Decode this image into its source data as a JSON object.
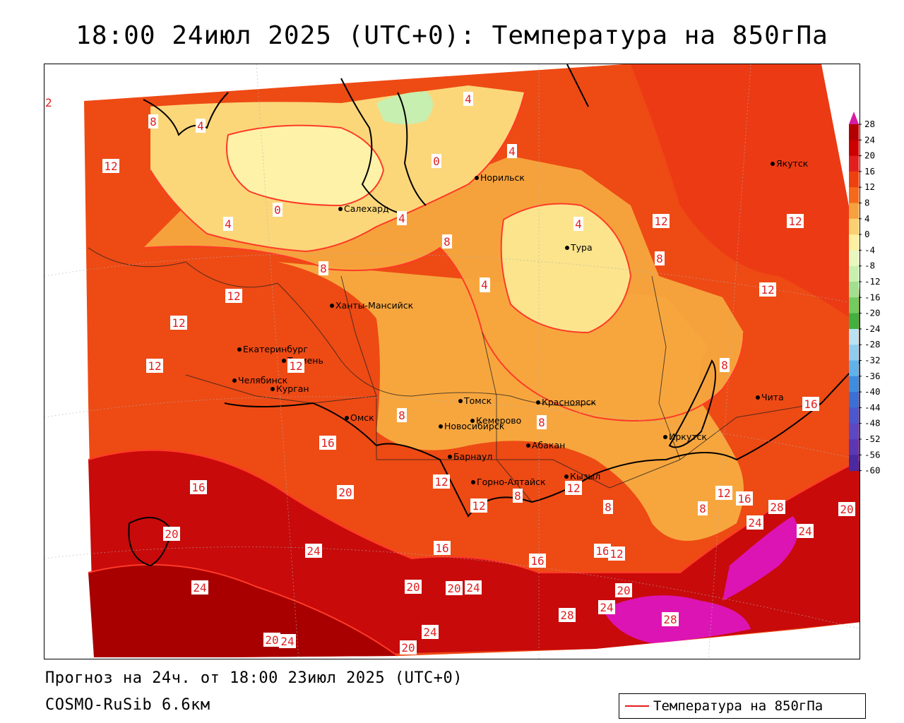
{
  "title": "18:00 24июл 2025 (UTC+0): Температура на 850гПа",
  "forecast_text": "Прогноз на 24ч. от 18:00 23июл 2025 (UTC+0)",
  "model_text": "COSMO-RuSib 6.6км",
  "legend": {
    "label": "Температура на 850гПа",
    "line_color": "#e21f1f"
  },
  "colorbar": {
    "levels": [
      "28",
      "24",
      "20",
      "16",
      "12",
      "8",
      "4",
      "0",
      "-4",
      "-8",
      "-12",
      "-16",
      "-20",
      "-24",
      "-28",
      "-32",
      "-36",
      "-40",
      "-44",
      "-48",
      "-52",
      "-56",
      "-60"
    ],
    "colors": [
      "#b30000",
      "#cc0000",
      "#e21f1f",
      "#ef4010",
      "#f56a1a",
      "#f7a040",
      "#fad070",
      "#fdf0a0",
      "#e8f7c0",
      "#c7efb0",
      "#a0e090",
      "#70cc60",
      "#40b040",
      "#b8e2f4",
      "#8fcdf0",
      "#5fb2ea",
      "#3d8ee0",
      "#3a6fd6",
      "#4a58cf",
      "#5a48c4",
      "#5a38b4",
      "#4a2aa0"
    ],
    "top_color": "#d61ba4"
  },
  "cities": [
    {
      "name": "Якутск"
    },
    {
      "name": "Норильск"
    },
    {
      "name": "Салехард"
    },
    {
      "name": "Тура"
    },
    {
      "name": "Ханты-Мансийск"
    },
    {
      "name": "Екатеринбург"
    },
    {
      "name": "Тюмень"
    },
    {
      "name": "Челябинск"
    },
    {
      "name": "Курган"
    },
    {
      "name": "Омск"
    },
    {
      "name": "Новосибирск"
    },
    {
      "name": "Томск"
    },
    {
      "name": "Красноярск"
    },
    {
      "name": "Кемерово"
    },
    {
      "name": "Абакан"
    },
    {
      "name": "Барнаул"
    },
    {
      "name": "Горно-Алтайск"
    },
    {
      "name": "Кызыл"
    },
    {
      "name": "Иркутск"
    },
    {
      "name": "Чита"
    }
  ],
  "contour_labels": [
    "12",
    "8",
    "4",
    "4",
    "4",
    "0",
    "0",
    "4",
    "12",
    "4",
    "8",
    "4",
    "8",
    "4",
    "12",
    "12",
    "8",
    "12",
    "4",
    "12",
    "12",
    "12",
    "12",
    "8",
    "8",
    "16",
    "16",
    "8",
    "16",
    "20",
    "8",
    "12",
    "12",
    "8",
    "12",
    "8",
    "12",
    "16",
    "16",
    "24",
    "28",
    "24",
    "20",
    "20",
    "24",
    "16",
    "16",
    "12",
    "24",
    "20",
    "20",
    "24",
    "20",
    "24",
    "28",
    "28",
    "20",
    "24",
    "24",
    "20"
  ]
}
